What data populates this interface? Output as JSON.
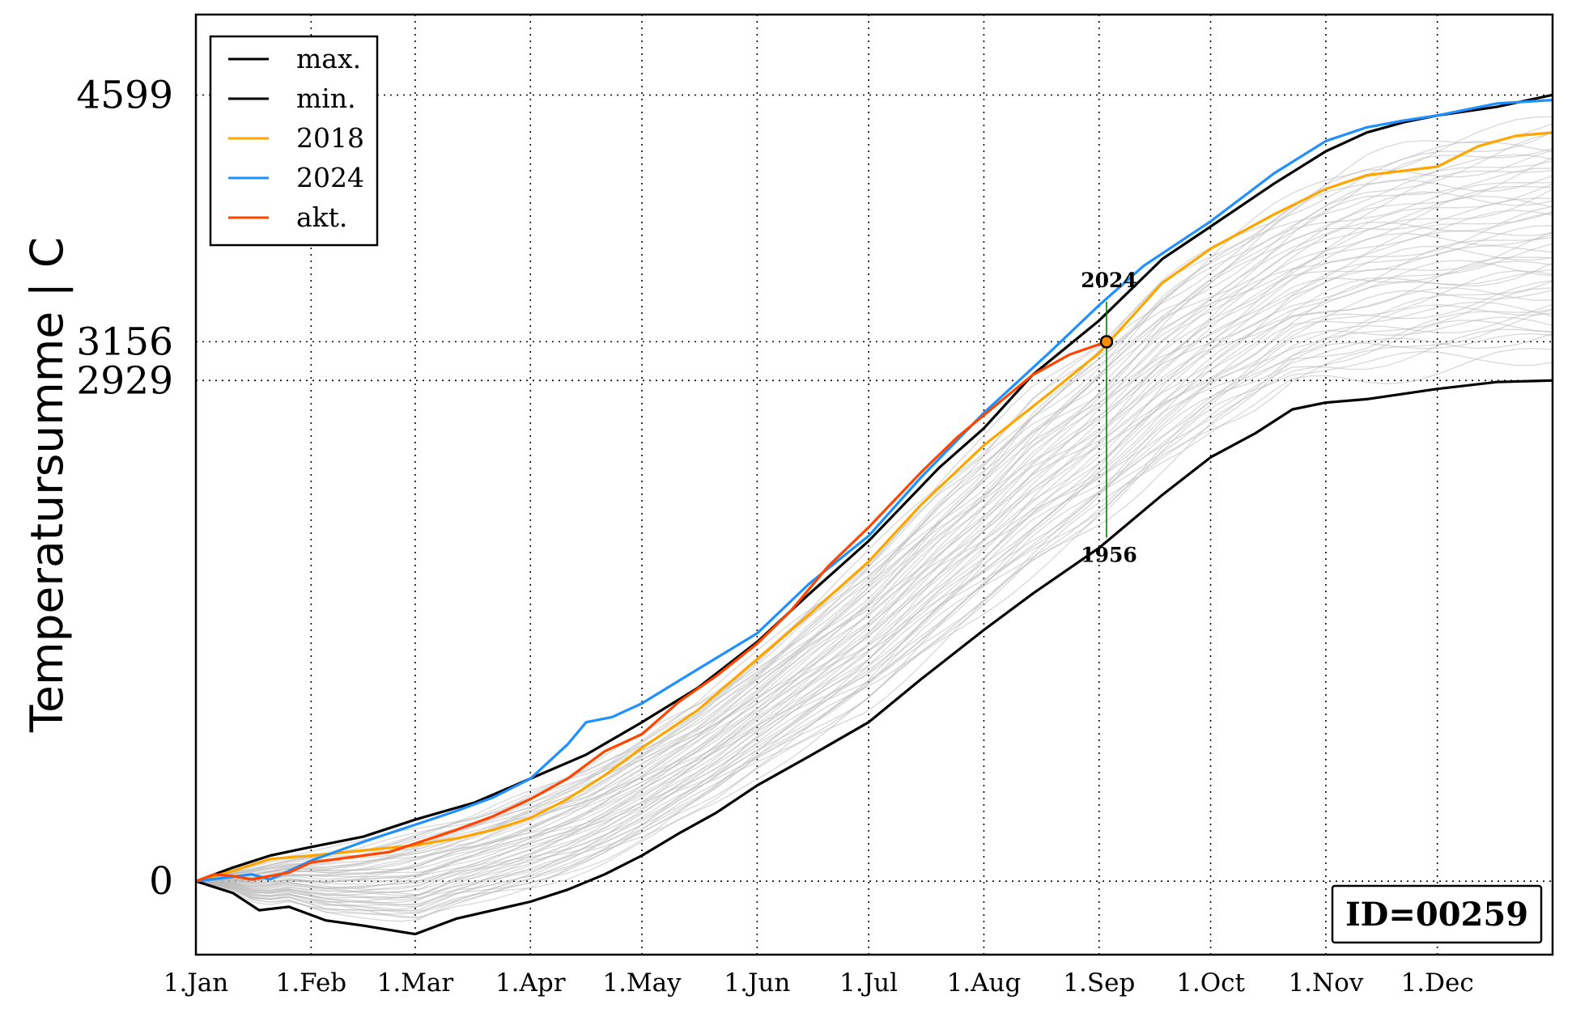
{
  "chart_data": {
    "type": "line",
    "ylabel": "Temperatursumme | C",
    "x_ticks": [
      "1.Jan",
      "1.Feb",
      "1.Mar",
      "1.Apr",
      "1.May",
      "1.Jun",
      "1.Jul",
      "1.Aug",
      "1.Sep",
      "1.Oct",
      "1.Nov",
      "1.Dec"
    ],
    "x_tick_days": [
      0,
      31,
      59,
      90,
      120,
      151,
      181,
      212,
      243,
      273,
      304,
      334
    ],
    "xlim": [
      0,
      365
    ],
    "ylim": [
      -430,
      5070
    ],
    "y_ticks": [
      0,
      2929,
      3156,
      4599
    ],
    "y_tick_labels": [
      "0",
      "2929",
      "3156",
      "4599"
    ],
    "grid": true,
    "legend_position": "top-left",
    "series": [
      {
        "name": "max.",
        "color": "#000000",
        "points": [
          [
            0,
            0
          ],
          [
            10,
            80
          ],
          [
            20,
            150
          ],
          [
            31,
            200
          ],
          [
            45,
            260
          ],
          [
            59,
            360
          ],
          [
            75,
            460
          ],
          [
            90,
            600
          ],
          [
            105,
            740
          ],
          [
            120,
            930
          ],
          [
            135,
            1130
          ],
          [
            151,
            1400
          ],
          [
            165,
            1680
          ],
          [
            181,
            1990
          ],
          [
            200,
            2420
          ],
          [
            212,
            2650
          ],
          [
            225,
            2960
          ],
          [
            243,
            3280
          ],
          [
            260,
            3640
          ],
          [
            273,
            3830
          ],
          [
            290,
            4080
          ],
          [
            304,
            4270
          ],
          [
            315,
            4380
          ],
          [
            325,
            4440
          ],
          [
            334,
            4480
          ],
          [
            350,
            4530
          ],
          [
            365,
            4600
          ]
        ]
      },
      {
        "name": "min.",
        "color": "#000000",
        "points": [
          [
            0,
            0
          ],
          [
            10,
            -70
          ],
          [
            17,
            -170
          ],
          [
            25,
            -150
          ],
          [
            35,
            -230
          ],
          [
            45,
            -260
          ],
          [
            59,
            -310
          ],
          [
            70,
            -220
          ],
          [
            80,
            -170
          ],
          [
            90,
            -120
          ],
          [
            100,
            -50
          ],
          [
            110,
            40
          ],
          [
            120,
            150
          ],
          [
            130,
            280
          ],
          [
            140,
            400
          ],
          [
            151,
            560
          ],
          [
            165,
            730
          ],
          [
            181,
            930
          ],
          [
            195,
            1180
          ],
          [
            212,
            1470
          ],
          [
            225,
            1680
          ],
          [
            243,
            1950
          ],
          [
            260,
            2260
          ],
          [
            273,
            2480
          ],
          [
            285,
            2620
          ],
          [
            295,
            2760
          ],
          [
            304,
            2800
          ],
          [
            315,
            2820
          ],
          [
            334,
            2880
          ],
          [
            350,
            2920
          ],
          [
            365,
            2929
          ]
        ]
      },
      {
        "name": "2018",
        "color": "#ffa500",
        "points": [
          [
            0,
            0
          ],
          [
            10,
            60
          ],
          [
            20,
            130
          ],
          [
            31,
            150
          ],
          [
            45,
            180
          ],
          [
            59,
            210
          ],
          [
            70,
            250
          ],
          [
            80,
            300
          ],
          [
            90,
            370
          ],
          [
            100,
            480
          ],
          [
            110,
            620
          ],
          [
            120,
            780
          ],
          [
            135,
            1000
          ],
          [
            151,
            1300
          ],
          [
            165,
            1560
          ],
          [
            181,
            1870
          ],
          [
            195,
            2200
          ],
          [
            212,
            2550
          ],
          [
            230,
            2860
          ],
          [
            243,
            3090
          ],
          [
            260,
            3500
          ],
          [
            273,
            3700
          ],
          [
            290,
            3900
          ],
          [
            304,
            4050
          ],
          [
            315,
            4130
          ],
          [
            334,
            4180
          ],
          [
            345,
            4300
          ],
          [
            355,
            4360
          ],
          [
            365,
            4380
          ]
        ]
      },
      {
        "name": "2024",
        "color": "#1e90ff",
        "points": [
          [
            0,
            0
          ],
          [
            8,
            20
          ],
          [
            15,
            40
          ],
          [
            20,
            10
          ],
          [
            31,
            120
          ],
          [
            45,
            230
          ],
          [
            59,
            330
          ],
          [
            70,
            410
          ],
          [
            80,
            490
          ],
          [
            90,
            600
          ],
          [
            100,
            800
          ],
          [
            105,
            930
          ],
          [
            112,
            960
          ],
          [
            120,
            1040
          ],
          [
            135,
            1240
          ],
          [
            151,
            1450
          ],
          [
            165,
            1740
          ],
          [
            181,
            2020
          ],
          [
            195,
            2360
          ],
          [
            212,
            2740
          ],
          [
            230,
            3100
          ],
          [
            243,
            3370
          ],
          [
            255,
            3600
          ],
          [
            273,
            3860
          ],
          [
            290,
            4140
          ],
          [
            304,
            4330
          ],
          [
            315,
            4410
          ],
          [
            325,
            4450
          ],
          [
            334,
            4480
          ],
          [
            350,
            4550
          ],
          [
            365,
            4570
          ]
        ]
      },
      {
        "name": "akt.",
        "color": "#ff4500",
        "points": [
          [
            0,
            0
          ],
          [
            5,
            40
          ],
          [
            10,
            30
          ],
          [
            15,
            10
          ],
          [
            20,
            30
          ],
          [
            25,
            50
          ],
          [
            31,
            110
          ],
          [
            38,
            130
          ],
          [
            45,
            150
          ],
          [
            52,
            170
          ],
          [
            59,
            220
          ],
          [
            70,
            300
          ],
          [
            80,
            380
          ],
          [
            90,
            480
          ],
          [
            100,
            600
          ],
          [
            110,
            760
          ],
          [
            120,
            860
          ],
          [
            130,
            1050
          ],
          [
            140,
            1200
          ],
          [
            151,
            1390
          ],
          [
            160,
            1580
          ],
          [
            170,
            1840
          ],
          [
            181,
            2070
          ],
          [
            195,
            2390
          ],
          [
            205,
            2600
          ],
          [
            215,
            2780
          ],
          [
            225,
            2960
          ],
          [
            235,
            3080
          ],
          [
            245,
            3156
          ]
        ]
      }
    ],
    "marker": {
      "x": 245,
      "y": 3156
    },
    "annotations": [
      {
        "text": "2024",
        "x": 245,
        "y": 3390,
        "dy": -18
      },
      {
        "text": "1956",
        "x": 245,
        "y": 2010,
        "dy": 30
      }
    ],
    "box_label": "ID=00259"
  }
}
